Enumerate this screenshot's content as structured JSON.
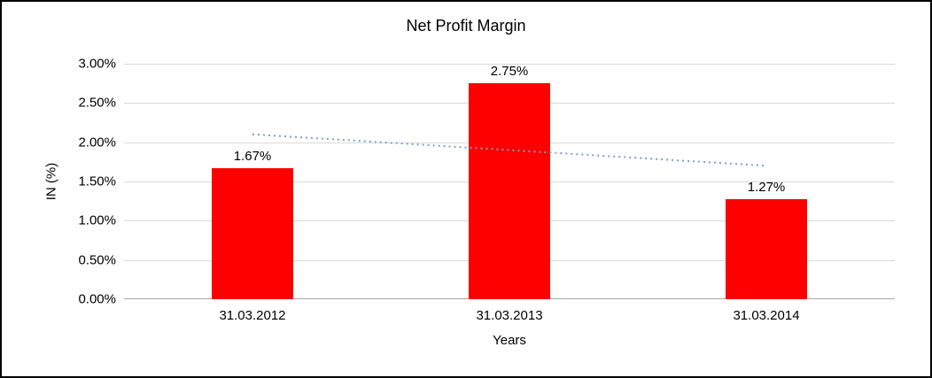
{
  "chart_data": {
    "type": "bar",
    "title": "Net Profit Margin",
    "xlabel": "Years",
    "ylabel": "IN (%)",
    "categories": [
      "31.03.2012",
      "31.03.2013",
      "31.03.2014"
    ],
    "values": [
      1.67,
      2.75,
      1.27
    ],
    "data_labels": [
      "1.67%",
      "2.75%",
      "1.27%"
    ],
    "y_ticks": [
      "0.00%",
      "0.50%",
      "1.00%",
      "1.50%",
      "2.00%",
      "2.50%",
      "3.00%"
    ],
    "y_tick_values": [
      0,
      0.5,
      1,
      1.5,
      2,
      2.5,
      3
    ],
    "ylim": [
      0,
      3
    ],
    "grid": true,
    "legend": false,
    "colors": {
      "bar": "#FF0000",
      "gridline": "#D9D9D9",
      "axis_line": "#A6A6A6",
      "text": "#000000"
    },
    "trendline": {
      "type": "linear",
      "style": "dotted",
      "color": "#7F9FC6",
      "start_value": 2.1,
      "end_value": 1.7
    }
  }
}
